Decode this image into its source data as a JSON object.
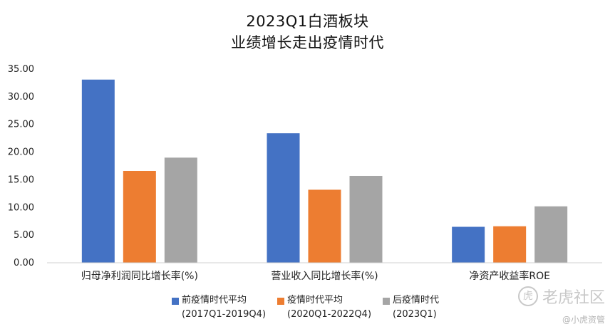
{
  "chart_data": {
    "type": "bar",
    "title_line1": "2023Q1白酒板块",
    "title_line2": "业绩增长走出疫情时代",
    "categories": [
      "归母净利润同比增长率(%)",
      "营业收入同比增长率(%)",
      "净资产收益率ROE"
    ],
    "series": [
      {
        "name": "前疫情时代平均",
        "name_line2": "(2017Q1-2019Q4)",
        "color": "#4472C4",
        "values": [
          33.1,
          23.4,
          6.5
        ]
      },
      {
        "name": "疫情时代平均",
        "name_line2": "(2020Q1-2022Q4)",
        "color": "#ED7D31",
        "values": [
          16.6,
          13.2,
          6.6
        ]
      },
      {
        "name": "后疫情时代",
        "name_line2": "(2023Q1)",
        "color": "#A5A5A5",
        "values": [
          19.0,
          15.7,
          10.2
        ]
      }
    ],
    "ylim": [
      0,
      35
    ],
    "y_ticks": [
      "0.00",
      "5.00",
      "10.00",
      "15.00",
      "20.00",
      "25.00",
      "30.00",
      "35.00"
    ],
    "legend_position": "bottom",
    "grid": false
  },
  "watermark": {
    "brand": "老虎社区",
    "icon": "tiger-logo-icon",
    "sub": "@小虎资管"
  }
}
